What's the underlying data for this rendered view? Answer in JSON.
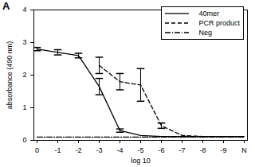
{
  "chart_data": {
    "type": "line",
    "title": "A",
    "x_label": "log 10",
    "y_label": "absorbance (490 nm)",
    "categories": [
      "0",
      "-1",
      "-2",
      "-3",
      "-4",
      "-5",
      "-6",
      "-7",
      "-8",
      "-9",
      "N"
    ],
    "ylim": [
      0,
      4
    ],
    "yticks": [
      0,
      1,
      2,
      3,
      4
    ],
    "grid": false,
    "legend": "top-right",
    "series": [
      {
        "name": "40mer",
        "color": "#000000",
        "line_style": "solid",
        "values": [
          2.8,
          2.7,
          2.6,
          1.65,
          0.3,
          0.15,
          0.12,
          0.12,
          0.12,
          0.12,
          0.12
        ],
        "errors": [
          0.05,
          0.08,
          0.07,
          0.25,
          0.05,
          null,
          null,
          null,
          null,
          null,
          null
        ]
      },
      {
        "name": "PCR product",
        "color": "#000000",
        "line_style": "dashed",
        "values": [
          null,
          null,
          null,
          2.3,
          1.8,
          1.7,
          0.45,
          0.15,
          0.12,
          0.12,
          0.12
        ],
        "errors": [
          null,
          null,
          null,
          0.25,
          0.25,
          0.5,
          0.08,
          null,
          null,
          null,
          null
        ]
      },
      {
        "name": "Neg",
        "color": "#000000",
        "line_style": "dashdot",
        "values": [
          0.1,
          0.1,
          0.1,
          0.1,
          0.1,
          0.1,
          0.1,
          0.1,
          0.1,
          0.1,
          0.1
        ]
      }
    ]
  }
}
